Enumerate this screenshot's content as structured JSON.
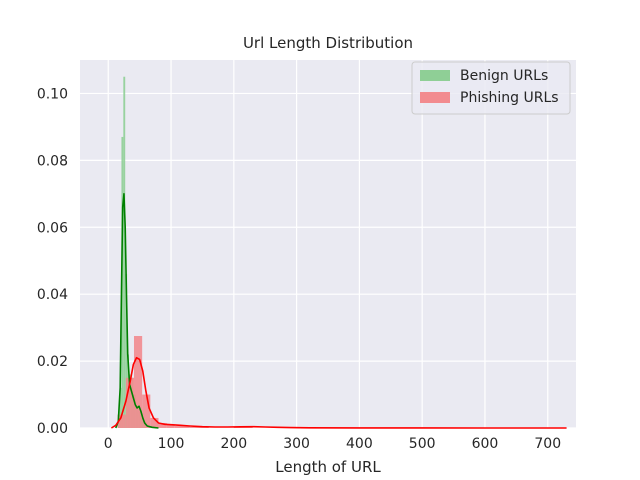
{
  "chart_data": {
    "type": "histogram_kde",
    "title": "Url Length Distribution",
    "xlabel": "Length of URL",
    "ylabel": "",
    "xlim": [
      -45,
      745
    ],
    "ylim": [
      0,
      0.11
    ],
    "xticks": [
      0,
      100,
      200,
      300,
      400,
      500,
      600,
      700
    ],
    "yticks": [
      0.0,
      0.02,
      0.04,
      0.06,
      0.08,
      0.1
    ],
    "ytick_labels": [
      "0.00",
      "0.02",
      "0.04",
      "0.06",
      "0.08",
      "0.10"
    ],
    "grid": true,
    "legend_position": "top-right",
    "series": [
      {
        "name": "Benign URLs",
        "bar_color": "#8fcf96",
        "line_color": "#008000",
        "bins": [
          {
            "x0": 15,
            "x1": 18,
            "y": 0.004
          },
          {
            "x0": 18,
            "x1": 21,
            "y": 0.012
          },
          {
            "x0": 21,
            "x1": 24,
            "y": 0.087
          },
          {
            "x0": 24,
            "x1": 27,
            "y": 0.105
          },
          {
            "x0": 27,
            "x1": 30,
            "y": 0.046
          },
          {
            "x0": 30,
            "x1": 33,
            "y": 0.022
          },
          {
            "x0": 33,
            "x1": 36,
            "y": 0.016
          },
          {
            "x0": 36,
            "x1": 40,
            "y": 0.015
          },
          {
            "x0": 40,
            "x1": 44,
            "y": 0.01
          },
          {
            "x0": 44,
            "x1": 48,
            "y": 0.006
          },
          {
            "x0": 48,
            "x1": 52,
            "y": 0.005
          },
          {
            "x0": 52,
            "x1": 56,
            "y": 0.003
          },
          {
            "x0": 56,
            "x1": 60,
            "y": 0.002
          }
        ],
        "kde": [
          [
            12,
            0.0
          ],
          [
            16,
            0.002
          ],
          [
            19,
            0.012
          ],
          [
            21,
            0.04
          ],
          [
            23,
            0.066
          ],
          [
            25,
            0.07
          ],
          [
            27,
            0.06
          ],
          [
            29,
            0.04
          ],
          [
            31,
            0.022
          ],
          [
            34,
            0.013
          ],
          [
            37,
            0.011
          ],
          [
            40,
            0.009
          ],
          [
            43,
            0.007
          ],
          [
            46,
            0.006
          ],
          [
            49,
            0.0065
          ],
          [
            52,
            0.005
          ],
          [
            55,
            0.003
          ],
          [
            58,
            0.0015
          ],
          [
            62,
            0.0006
          ],
          [
            70,
            0.0002
          ],
          [
            80,
            0.0
          ]
        ]
      },
      {
        "name": "Phishing URLs",
        "bar_color": "#f28b8f",
        "line_color": "#ff0000",
        "bins": [
          {
            "x0": 15,
            "x1": 28,
            "y": 0.004
          },
          {
            "x0": 28,
            "x1": 41,
            "y": 0.015
          },
          {
            "x0": 41,
            "x1": 54,
            "y": 0.0275
          },
          {
            "x0": 54,
            "x1": 67,
            "y": 0.01
          },
          {
            "x0": 67,
            "x1": 80,
            "y": 0.003
          },
          {
            "x0": 80,
            "x1": 93,
            "y": 0.0015
          },
          {
            "x0": 93,
            "x1": 106,
            "y": 0.001
          },
          {
            "x0": 106,
            "x1": 130,
            "y": 0.0006
          },
          {
            "x0": 130,
            "x1": 160,
            "y": 0.0003
          },
          {
            "x0": 200,
            "x1": 230,
            "y": 0.0002
          },
          {
            "x0": 260,
            "x1": 290,
            "y": 0.0001
          }
        ],
        "kde": [
          [
            5,
            0.0
          ],
          [
            12,
            0.0008
          ],
          [
            20,
            0.003
          ],
          [
            28,
            0.008
          ],
          [
            35,
            0.014
          ],
          [
            40,
            0.019
          ],
          [
            45,
            0.021
          ],
          [
            50,
            0.0205
          ],
          [
            55,
            0.017
          ],
          [
            60,
            0.011
          ],
          [
            65,
            0.006
          ],
          [
            72,
            0.003
          ],
          [
            80,
            0.0015
          ],
          [
            90,
            0.0011
          ],
          [
            100,
            0.001
          ],
          [
            115,
            0.0008
          ],
          [
            130,
            0.0006
          ],
          [
            150,
            0.0004
          ],
          [
            170,
            0.0003
          ],
          [
            190,
            0.0003
          ],
          [
            210,
            0.00035
          ],
          [
            230,
            0.0004
          ],
          [
            250,
            0.0003
          ],
          [
            270,
            0.0002
          ],
          [
            290,
            0.00012
          ],
          [
            320,
            5e-05
          ],
          [
            400,
            2e-05
          ],
          [
            500,
            1e-05
          ],
          [
            600,
            0.0
          ],
          [
            730,
            0.0
          ]
        ]
      }
    ]
  }
}
